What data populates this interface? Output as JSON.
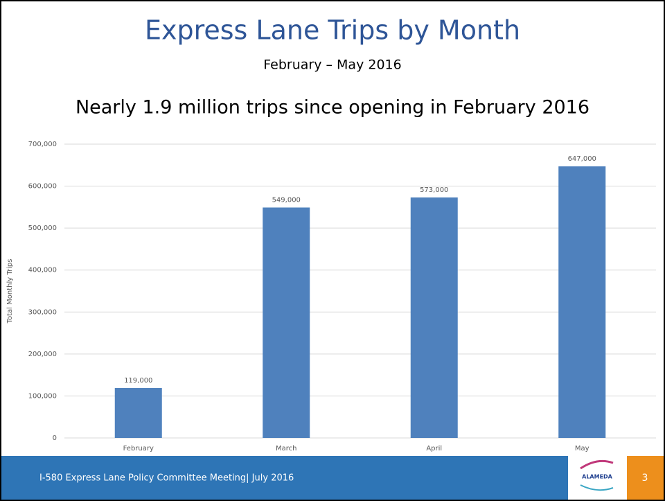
{
  "slide": {
    "title": "Express Lane Trips by Month",
    "subtitle": "February – May 2016",
    "headline": "Nearly 1.9 million trips since opening in February 2016",
    "footer": "I-580 Express Lane Policy Committee Meeting| July 2016",
    "page_number": "3",
    "logo": "ALAMEDA"
  },
  "chart_data": {
    "type": "bar",
    "y_label": "Total Monthly Trips",
    "categories": [
      "February",
      "March",
      "April",
      "May"
    ],
    "values": [
      119000,
      549000,
      573000,
      647000
    ],
    "value_labels": [
      "119,000",
      "549,000",
      "573,000",
      "647,000"
    ],
    "color": "#4f81bd",
    "ylim": [
      0,
      700000
    ],
    "yticks": [
      0,
      {
        "value": 100000,
        "label": "100,000"
      },
      {
        "value": 200000,
        "label": "200,000"
      },
      {
        "value": 300000,
        "label": "300,000"
      },
      {
        "value": 400000,
        "label": "400,000"
      },
      {
        "value": 500000,
        "label": "500,000"
      },
      {
        "value": 600000,
        "label": "600,000"
      },
      {
        "value": 700000,
        "label": "700,000"
      }
    ],
    "grid": true
  }
}
